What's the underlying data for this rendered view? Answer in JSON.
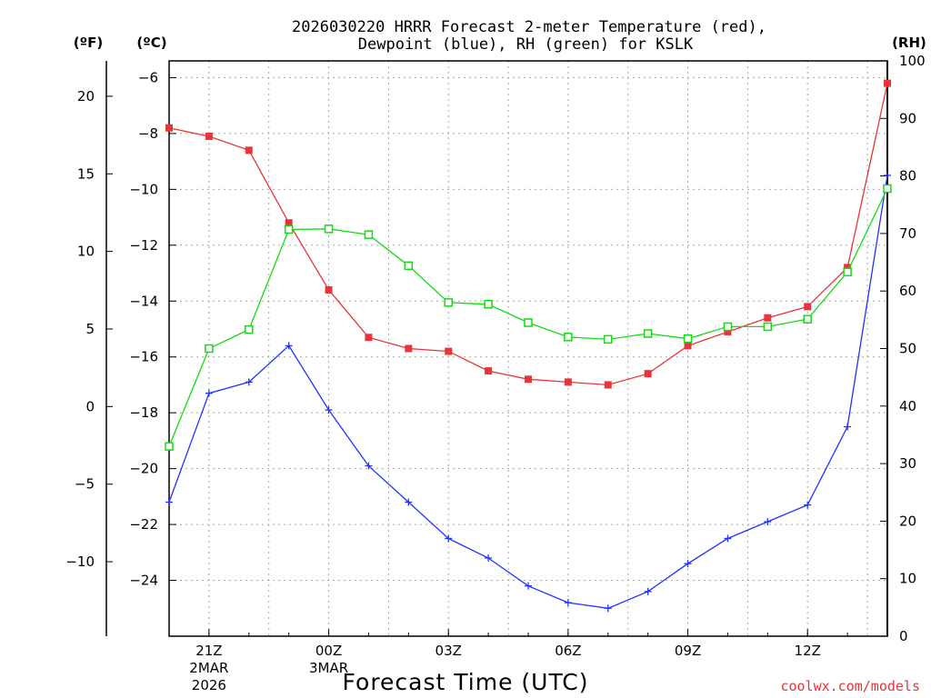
{
  "chart_data": {
    "type": "line",
    "title_line1": "2026030220 HRRR Forecast 2-meter Temperature (red),",
    "title_line2": "Dewpoint (blue), RH (green) for KSLK",
    "units": {
      "f": "(ºF)",
      "c": "(ºC)",
      "rh": "(RH)"
    },
    "xlabel": "Forecast Time (UTC)",
    "credit": "coolwx.com/models",
    "x_hours": [
      20,
      21,
      22,
      23,
      24,
      25,
      26,
      27,
      28,
      29,
      30,
      31,
      32,
      33,
      34,
      35,
      36,
      37,
      38
    ],
    "xlim": [
      20,
      38
    ],
    "c_ylim": [
      -26.0,
      -5.4
    ],
    "c_ticks": [
      -6,
      -8,
      -10,
      -12,
      -14,
      -16,
      -18,
      -20,
      -22,
      -24
    ],
    "f_ticks": [
      20,
      15,
      10,
      5,
      0,
      -5,
      -10
    ],
    "rh_ylim": [
      0,
      100
    ],
    "rh_ticks": [
      0,
      10,
      20,
      30,
      40,
      50,
      60,
      70,
      80,
      90,
      100
    ],
    "x_ticks": [
      {
        "hour": 21,
        "label": "21Z",
        "sub1": "2MAR",
        "sub2": "2026"
      },
      {
        "hour": 24,
        "label": "00Z",
        "sub1": "3MAR",
        "sub2": ""
      },
      {
        "hour": 27,
        "label": "03Z",
        "sub1": "",
        "sub2": ""
      },
      {
        "hour": 30,
        "label": "06Z",
        "sub1": "",
        "sub2": ""
      },
      {
        "hour": 33,
        "label": "09Z",
        "sub1": "",
        "sub2": ""
      },
      {
        "hour": 36,
        "label": "12Z",
        "sub1": "",
        "sub2": ""
      }
    ],
    "series": [
      {
        "name": "Temperature",
        "axis": "c",
        "color": "#e8353a",
        "marker": "filled-square",
        "values": [
          -7.8,
          -8.1,
          -8.6,
          -11.2,
          -13.6,
          -15.3,
          -15.7,
          -15.8,
          -16.5,
          -16.8,
          -16.9,
          -17.0,
          -16.6,
          -15.6,
          -15.1,
          -14.6,
          -14.2,
          -12.8,
          -6.2
        ]
      },
      {
        "name": "Dewpoint",
        "axis": "c",
        "color": "#2233ff",
        "marker": "plus",
        "values": [
          -21.2,
          -17.3,
          -16.9,
          -15.6,
          -17.9,
          -19.9,
          -21.2,
          -22.5,
          -23.2,
          -24.2,
          -24.8,
          -25.0,
          -24.4,
          -23.4,
          -22.5,
          -21.9,
          -21.3,
          -18.5,
          -9.5
        ]
      },
      {
        "name": "RH",
        "axis": "rh",
        "color": "#11dd11",
        "marker": "open-square",
        "values": [
          33,
          50,
          53.3,
          70.7,
          70.8,
          69.8,
          64.4,
          58,
          57.7,
          54.5,
          52,
          51.6,
          52.6,
          51.7,
          53.8,
          53.8,
          55.1,
          63.3,
          77.8
        ]
      }
    ]
  }
}
